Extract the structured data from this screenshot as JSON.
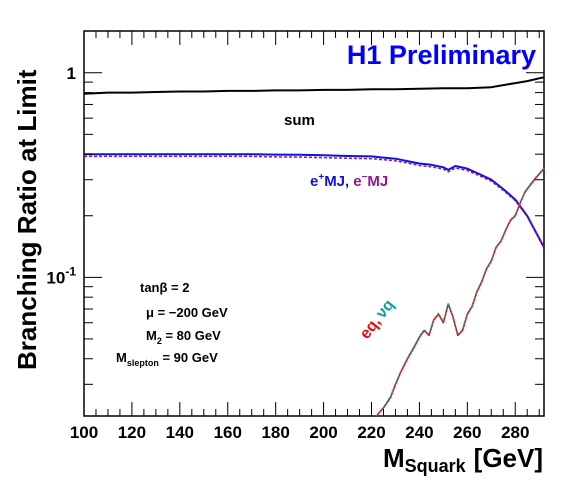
{
  "chart_data": {
    "type": "line",
    "title": "H1 Preliminary",
    "xlabel": "M",
    "xlabel_sub": "Squark",
    "xlabel_unit": "[GeV]",
    "ylabel": "Branching Ratio at Limit",
    "xlim": [
      100,
      292
    ],
    "ylim": [
      0.021,
      1.6
    ],
    "yscale": "log",
    "grid": false,
    "x_ticks": [
      100,
      120,
      140,
      160,
      180,
      200,
      220,
      240,
      260,
      280
    ],
    "y_ticks": [
      {
        "value": 1,
        "label": "1"
      },
      {
        "value": 0.1,
        "label": "10",
        "exp": "-1"
      }
    ],
    "colors": {
      "sum": "#000000",
      "e_plus_MJ": "#1010e0",
      "e_minus_MJ": "#8b1a8b",
      "eq": "#e01010",
      "nu_q": "#10a0a0",
      "title": "#0000ff"
    },
    "series": [
      {
        "key": "sum",
        "x": [
          100,
          110,
          120,
          130,
          140,
          150,
          160,
          170,
          180,
          190,
          200,
          210,
          220,
          230,
          240,
          250,
          260,
          270,
          275,
          280,
          285,
          290,
          292
        ],
        "y": [
          0.79,
          0.8,
          0.8,
          0.805,
          0.81,
          0.81,
          0.815,
          0.815,
          0.82,
          0.82,
          0.825,
          0.825,
          0.83,
          0.83,
          0.835,
          0.84,
          0.84,
          0.85,
          0.87,
          0.89,
          0.91,
          0.94,
          0.95
        ]
      },
      {
        "key": "e_plus_MJ",
        "x": [
          100,
          110,
          120,
          130,
          140,
          150,
          160,
          170,
          180,
          190,
          200,
          210,
          220,
          225,
          230,
          235,
          240,
          245,
          250,
          252,
          255,
          260,
          265,
          270,
          275,
          280,
          285,
          290,
          292
        ],
        "y": [
          0.4,
          0.4,
          0.4,
          0.4,
          0.4,
          0.4,
          0.4,
          0.4,
          0.398,
          0.397,
          0.395,
          0.392,
          0.39,
          0.385,
          0.38,
          0.37,
          0.36,
          0.355,
          0.345,
          0.335,
          0.35,
          0.34,
          0.32,
          0.3,
          0.27,
          0.24,
          0.2,
          0.155,
          0.14
        ]
      },
      {
        "key": "e_minus_MJ",
        "x": [
          100,
          110,
          120,
          130,
          140,
          150,
          160,
          170,
          180,
          190,
          200,
          210,
          220,
          225,
          230,
          235,
          240,
          245,
          250,
          252,
          255,
          260,
          265,
          270,
          275,
          280,
          285,
          290,
          292
        ],
        "y": [
          0.39,
          0.39,
          0.39,
          0.39,
          0.39,
          0.39,
          0.39,
          0.39,
          0.388,
          0.387,
          0.385,
          0.382,
          0.38,
          0.376,
          0.371,
          0.362,
          0.352,
          0.347,
          0.338,
          0.328,
          0.342,
          0.333,
          0.314,
          0.295,
          0.266,
          0.237,
          0.198,
          0.154,
          0.139
        ]
      },
      {
        "key": "eq",
        "x": [
          222,
          225,
          228,
          230,
          232,
          235,
          238,
          240,
          242,
          244,
          246,
          248,
          250,
          252,
          254,
          256,
          258,
          260,
          262,
          264,
          266,
          268,
          270,
          272,
          274,
          276,
          278,
          280,
          282,
          284,
          286,
          288,
          290,
          292
        ],
        "y": [
          0.021,
          0.023,
          0.026,
          0.03,
          0.034,
          0.04,
          0.046,
          0.051,
          0.055,
          0.052,
          0.062,
          0.066,
          0.06,
          0.074,
          0.064,
          0.052,
          0.055,
          0.066,
          0.072,
          0.085,
          0.095,
          0.11,
          0.12,
          0.14,
          0.15,
          0.17,
          0.19,
          0.2,
          0.23,
          0.26,
          0.28,
          0.3,
          0.32,
          0.34
        ]
      },
      {
        "key": "nu_q",
        "x": [
          222,
          225,
          228,
          230,
          232,
          235,
          238,
          240,
          242,
          244,
          246,
          248,
          250,
          252,
          254,
          256,
          258,
          260,
          262,
          264,
          266,
          268,
          270,
          272,
          274,
          276,
          278,
          280,
          282,
          284,
          286,
          288,
          290,
          292
        ],
        "y": [
          0.021,
          0.0232,
          0.0263,
          0.0303,
          0.0344,
          0.0404,
          0.0465,
          0.0516,
          0.0556,
          0.0526,
          0.0627,
          0.0667,
          0.0607,
          0.0749,
          0.0647,
          0.0526,
          0.0556,
          0.0667,
          0.0728,
          0.0859,
          0.096,
          0.111,
          0.121,
          0.141,
          0.151,
          0.172,
          0.192,
          0.202,
          0.232,
          0.262,
          0.283,
          0.303,
          0.323,
          0.343
        ]
      }
    ],
    "labels": {
      "sum": "sum",
      "e_plus": "e",
      "e_plus_sup": "+",
      "e_plus_rest": "MJ,",
      "e_minus": "e",
      "e_minus_sup": "−",
      "e_minus_rest": "MJ",
      "eq": "eq,",
      "nu_q": "νq"
    },
    "annotations": {
      "tanb": "tanβ = 2",
      "mu": "μ = −200 GeV",
      "m2_main": "M",
      "m2_sub": "2",
      "m2_rest": " = 80 GeV",
      "msl_main": "M",
      "msl_sub": "slepton",
      "msl_rest": " = 90 GeV"
    }
  }
}
